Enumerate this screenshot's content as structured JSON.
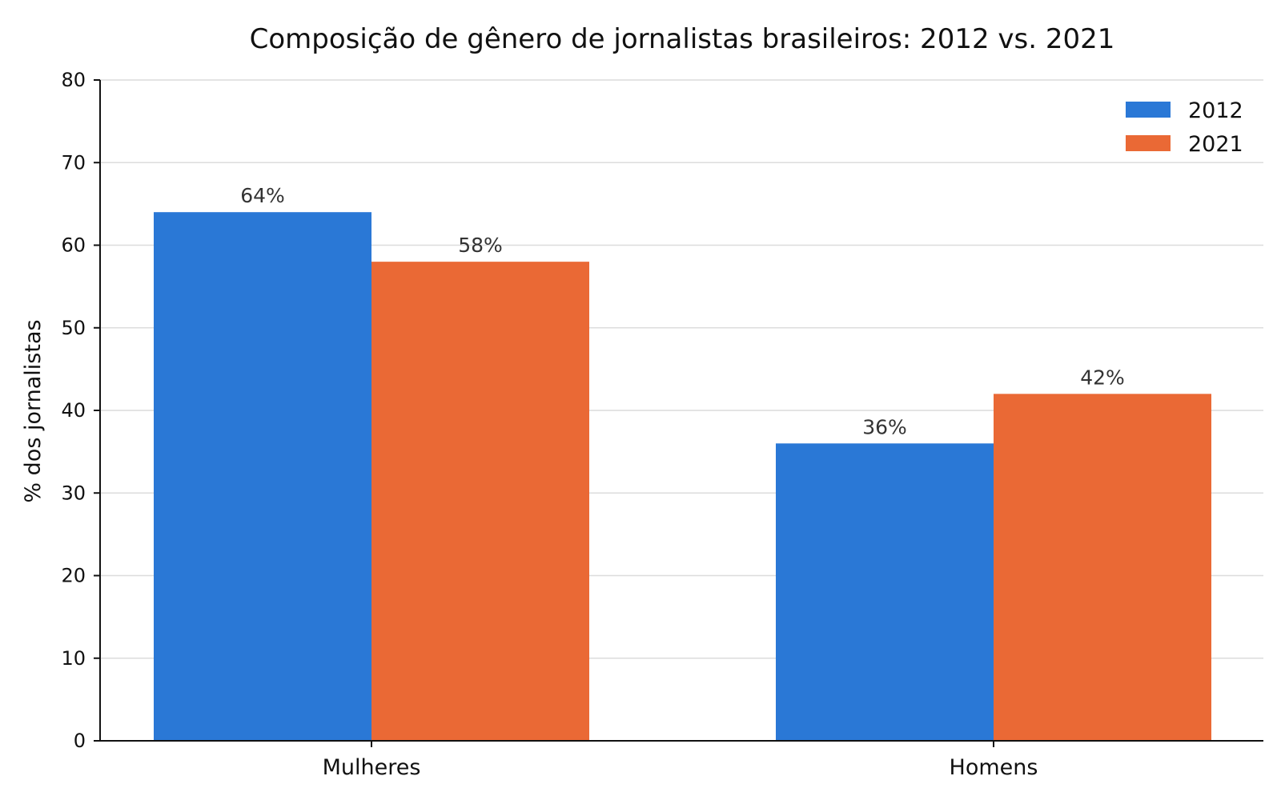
{
  "chart_data": {
    "type": "bar",
    "title": "Composição de gênero de jornalistas brasileiros: 2012 vs. 2021",
    "xlabel": "",
    "ylabel": "% dos jornalistas",
    "categories": [
      "Mulheres",
      "Homens"
    ],
    "series": [
      {
        "name": "2012",
        "values": [
          64,
          36
        ],
        "labels": [
          "64%",
          "36%"
        ],
        "color": "#2a78d6"
      },
      {
        "name": "2021",
        "values": [
          58,
          42
        ],
        "labels": [
          "58%",
          "42%"
        ],
        "color": "#ea6935"
      }
    ],
    "ylim": [
      0,
      80
    ],
    "yticks": [
      0,
      10,
      20,
      30,
      40,
      50,
      60,
      70,
      80
    ],
    "grid": "horizontal",
    "legend": "top-right"
  }
}
